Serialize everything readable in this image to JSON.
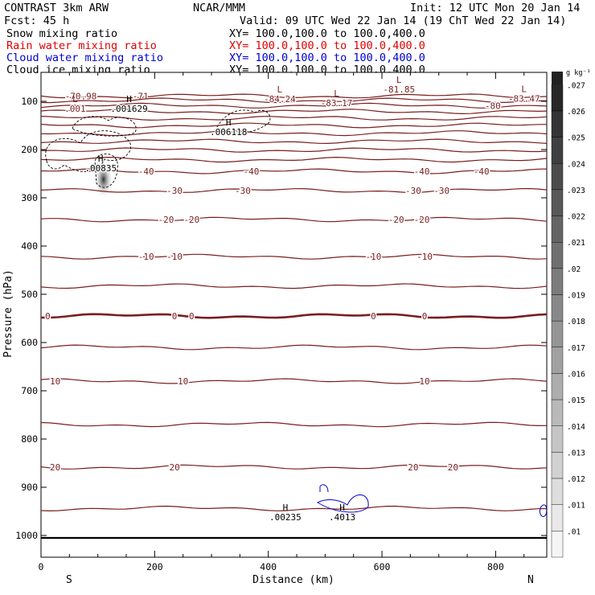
{
  "header": {
    "model": "CONTRAST  3km ARW",
    "org": "NCAR/MMM",
    "init": "Init: 12 UTC Mon 20 Jan 14",
    "fcst": "Fcst:   45 h",
    "valid": "Valid: 09 UTC Wed 22 Jan 14 (19 ChT Wed 22 Jan 14)",
    "fields": [
      {
        "name": "Snow mixing ratio",
        "xy": "XY= 100.0,100.0 to 100.0,400.0",
        "color": "#000000"
      },
      {
        "name": "Rain water mixing ratio",
        "xy": "XY= 100.0,100.0 to 100.0,400.0",
        "color": "#e00000"
      },
      {
        "name": "Cloud water mixing ratio",
        "xy": "XY= 100.0,100.0 to 100.0,400.0",
        "color": "#0000d0"
      },
      {
        "name": "Cloud ice mixing ratio",
        "xy": "XY= 100.0,100.0 to 100.0,400.0",
        "color": "#000000"
      }
    ]
  },
  "chart_data": {
    "type": "contour-cross-section",
    "xlabel": "Distance (km)",
    "ylabel": "Pressure (hPa)",
    "xlim": [
      0,
      890
    ],
    "ylim": [
      1045,
      40
    ],
    "xticks": [
      0,
      200,
      400,
      600,
      800
    ],
    "yticks": [
      100,
      200,
      300,
      400,
      500,
      600,
      700,
      800,
      900,
      1000
    ],
    "left_end_label": "S",
    "right_end_label": "N",
    "contour_color": "#7a1e1e",
    "isotherms": [
      {
        "p": 89,
        "labels": [
          {
            "x": 70,
            "t": "-70.98"
          },
          {
            "x": 175,
            "t": "-71"
          }
        ]
      },
      {
        "p": 98,
        "labels": []
      },
      {
        "p": 109,
        "labels": [
          {
            "x": 795,
            "t": "-80"
          }
        ]
      },
      {
        "p": 121,
        "labels": []
      },
      {
        "p": 135,
        "labels": []
      },
      {
        "p": 150,
        "labels": []
      },
      {
        "p": 166,
        "labels": []
      },
      {
        "p": 183,
        "labels": []
      },
      {
        "p": 201,
        "labels": []
      },
      {
        "p": 221,
        "labels": []
      },
      {
        "p": 245,
        "labels": [
          {
            "x": 185,
            "t": "-40"
          },
          {
            "x": 370,
            "t": "-40"
          },
          {
            "x": 670,
            "t": "-40"
          },
          {
            "x": 775,
            "t": "-40"
          }
        ]
      },
      {
        "p": 285,
        "labels": [
          {
            "x": 235,
            "t": "-30"
          },
          {
            "x": 355,
            "t": "-30"
          },
          {
            "x": 655,
            "t": "-30"
          },
          {
            "x": 705,
            "t": "-30"
          }
        ]
      },
      {
        "p": 345,
        "labels": [
          {
            "x": 220,
            "t": "-20"
          },
          {
            "x": 265,
            "t": "-20"
          },
          {
            "x": 625,
            "t": "-20"
          },
          {
            "x": 670,
            "t": "-20"
          }
        ]
      },
      {
        "p": 422,
        "labels": [
          {
            "x": 185,
            "t": "-10"
          },
          {
            "x": 235,
            "t": "-10"
          },
          {
            "x": 585,
            "t": "-10"
          },
          {
            "x": 675,
            "t": "-10"
          }
        ]
      },
      {
        "p": 483,
        "labels": []
      },
      {
        "p": 545,
        "labels": [
          {
            "x": 12,
            "t": "0"
          },
          {
            "x": 235,
            "t": "0"
          },
          {
            "x": 265,
            "t": "0"
          },
          {
            "x": 585,
            "t": "0"
          },
          {
            "x": 675,
            "t": "0"
          }
        ],
        "bold": true
      },
      {
        "p": 610,
        "labels": []
      },
      {
        "p": 680,
        "labels": [
          {
            "x": 25,
            "t": "10"
          },
          {
            "x": 250,
            "t": "10"
          },
          {
            "x": 675,
            "t": "10"
          }
        ]
      },
      {
        "p": 770,
        "labels": []
      },
      {
        "p": 858,
        "labels": [
          {
            "x": 25,
            "t": "20"
          },
          {
            "x": 235,
            "t": "20"
          },
          {
            "x": 655,
            "t": "20"
          },
          {
            "x": 725,
            "t": "20"
          }
        ]
      },
      {
        "p": 944,
        "labels": []
      }
    ],
    "extrema": [
      {
        "x": 60,
        "p": 112,
        "kind": "L",
        "value": ".001"
      },
      {
        "x": 155,
        "p": 112,
        "kind": "H",
        "value": ".001629"
      },
      {
        "x": 330,
        "p": 160,
        "kind": "H",
        "value": ".006118"
      },
      {
        "x": 105,
        "p": 235,
        "kind": "H",
        "value": ".00835"
      },
      {
        "x": 420,
        "p": 92,
        "kind": "L",
        "value": "-84.24"
      },
      {
        "x": 520,
        "p": 100,
        "kind": "L",
        "value": "-83.17"
      },
      {
        "x": 630,
        "p": 72,
        "kind": "L",
        "value": "-81.85"
      },
      {
        "x": 850,
        "p": 91,
        "kind": "L",
        "value": "-83.47"
      },
      {
        "x": 430,
        "p": 958,
        "kind": "H",
        "value": ".00235"
      },
      {
        "x": 530,
        "p": 958,
        "kind": "H",
        "value": ".4013"
      }
    ],
    "colorbar": {
      "unit": "g kg⁻¹",
      "levels": [
        ".027",
        ".026",
        ".025",
        ".024",
        ".023",
        ".022",
        ".021",
        ".02",
        ".019",
        ".018",
        ".017",
        ".016",
        ".015",
        ".014",
        ".013",
        ".012",
        ".011",
        ".01"
      ]
    }
  }
}
